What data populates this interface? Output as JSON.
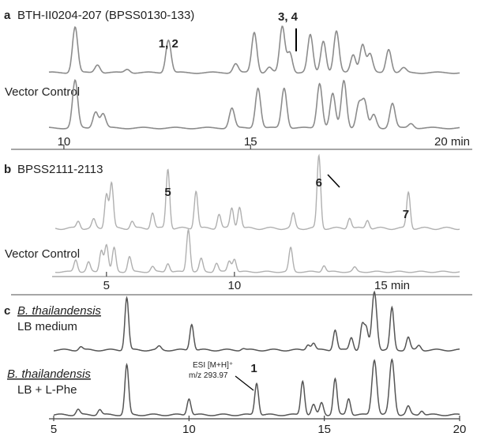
{
  "panels": [
    {
      "letter": "a",
      "title": "BTH-II0204-207 (BPSS0130-133)",
      "control_label": "Vector Control",
      "axis_unit": "20 min"
    },
    {
      "letter": "b",
      "title": "BPSS2111-2113",
      "control_label": "Vector Control",
      "axis_unit": "15 min"
    },
    {
      "letter": "c",
      "trace1_label_species": "B. thailandensis",
      "trace1_label_medium": "LB medium",
      "trace2_label_species": "B. thailandensis",
      "trace2_label_medium": "LB + L-Phe",
      "annotation_line1": "ESI [M+H]⁺",
      "annotation_line2": "m/z 293.97"
    }
  ],
  "chart_data": [
    {
      "type": "line",
      "panel": "a",
      "xlim": [
        9.6,
        20.6
      ],
      "x_ticks": [
        10,
        15
      ],
      "x_tick_labels": [
        "10",
        "15"
      ],
      "peak_labels": [
        {
          "text": "1, 2",
          "x": 12.8
        },
        {
          "text": "3, 4",
          "x": 16.0
        }
      ],
      "series": [
        {
          "name": "BTH-II0204-207 (BPSS0130-133)",
          "peaks": [
            [
              10.3,
              1.0
            ],
            [
              10.9,
              0.18
            ],
            [
              11.7,
              0.08
            ],
            [
              12.8,
              0.72
            ],
            [
              14.6,
              0.2
            ],
            [
              15.1,
              0.88
            ],
            [
              15.5,
              0.12
            ],
            [
              15.85,
              1.0
            ],
            [
              16.05,
              0.45
            ],
            [
              16.6,
              0.82
            ],
            [
              16.95,
              0.7
            ],
            [
              17.3,
              0.9
            ],
            [
              17.75,
              0.4
            ],
            [
              18.0,
              0.62
            ],
            [
              18.2,
              0.4
            ],
            [
              18.7,
              0.52
            ],
            [
              19.1,
              0.1
            ]
          ]
        },
        {
          "name": "Vector Control",
          "peaks": [
            [
              10.3,
              1.0
            ],
            [
              10.85,
              0.35
            ],
            [
              11.05,
              0.3
            ],
            [
              14.5,
              0.42
            ],
            [
              15.2,
              0.85
            ],
            [
              15.9,
              0.85
            ],
            [
              16.85,
              0.95
            ],
            [
              17.2,
              0.72
            ],
            [
              17.5,
              1.0
            ],
            [
              17.9,
              0.5
            ],
            [
              18.05,
              0.55
            ],
            [
              18.3,
              0.28
            ],
            [
              18.8,
              0.52
            ],
            [
              19.3,
              0.1
            ]
          ]
        }
      ]
    },
    {
      "type": "line",
      "panel": "b",
      "xlim": [
        3.0,
        18.8
      ],
      "x_ticks": [
        5,
        10
      ],
      "x_tick_labels": [
        "5",
        "10"
      ],
      "peak_labels": [
        {
          "text": "5",
          "x": 7.4
        },
        {
          "text": "6",
          "x": 13.3
        },
        {
          "text": "7",
          "x": 16.7
        }
      ],
      "series": [
        {
          "peaks": [
            [
              3.9,
              0.1
            ],
            [
              4.5,
              0.12
            ],
            [
              5.0,
              0.48
            ],
            [
              5.2,
              0.62
            ],
            [
              6.0,
              0.1
            ],
            [
              6.8,
              0.22
            ],
            [
              7.4,
              0.82
            ],
            [
              8.5,
              0.52
            ],
            [
              9.4,
              0.2
            ],
            [
              9.9,
              0.28
            ],
            [
              10.2,
              0.3
            ],
            [
              12.3,
              0.2
            ],
            [
              13.3,
              1.0
            ],
            [
              14.5,
              0.15
            ],
            [
              15.2,
              0.12
            ],
            [
              16.8,
              0.5
            ]
          ]
        },
        {
          "name": "Vector Control",
          "peaks": [
            [
              3.8,
              0.28
            ],
            [
              4.3,
              0.22
            ],
            [
              4.8,
              0.5
            ],
            [
              5.0,
              0.62
            ],
            [
              5.3,
              0.55
            ],
            [
              5.9,
              0.35
            ],
            [
              6.8,
              0.12
            ],
            [
              7.4,
              0.2
            ],
            [
              8.2,
              0.98
            ],
            [
              8.7,
              0.3
            ],
            [
              9.3,
              0.2
            ],
            [
              9.8,
              0.25
            ],
            [
              10.0,
              0.3
            ],
            [
              12.2,
              0.55
            ],
            [
              13.5,
              0.15
            ],
            [
              14.7,
              0.1
            ]
          ]
        }
      ]
    },
    {
      "type": "line",
      "panel": "c",
      "xlim": [
        5,
        20
      ],
      "x_ticks": [
        5,
        10,
        15,
        20
      ],
      "x_tick_labels": [
        "5",
        "10",
        "15",
        "20"
      ],
      "peak_labels": [
        {
          "text": "1",
          "x": 12.4
        }
      ],
      "series": [
        {
          "name": "B. thailandensis LB medium",
          "peaks": [
            [
              6.0,
              0.06
            ],
            [
              7.7,
              0.9
            ],
            [
              8.9,
              0.06
            ],
            [
              10.1,
              0.45
            ],
            [
              12.0,
              0.03
            ],
            [
              14.4,
              0.1
            ],
            [
              14.6,
              0.12
            ],
            [
              15.4,
              0.35
            ],
            [
              16.0,
              0.22
            ],
            [
              16.4,
              0.42
            ],
            [
              16.55,
              0.35
            ],
            [
              16.85,
              1.0
            ],
            [
              17.5,
              0.72
            ],
            [
              18.1,
              0.22
            ],
            [
              18.5,
              0.08
            ]
          ]
        },
        {
          "name": "B. thailandensis LB + L-Phe",
          "peaks": [
            [
              5.9,
              0.1
            ],
            [
              6.7,
              0.1
            ],
            [
              7.7,
              0.9
            ],
            [
              10.0,
              0.3
            ],
            [
              12.5,
              0.58
            ],
            [
              14.2,
              0.62
            ],
            [
              14.6,
              0.18
            ],
            [
              14.9,
              0.22
            ],
            [
              15.4,
              0.65
            ],
            [
              15.9,
              0.3
            ],
            [
              16.85,
              1.0
            ],
            [
              17.5,
              1.0
            ],
            [
              18.1,
              0.15
            ],
            [
              18.6,
              0.08
            ]
          ]
        }
      ]
    }
  ]
}
